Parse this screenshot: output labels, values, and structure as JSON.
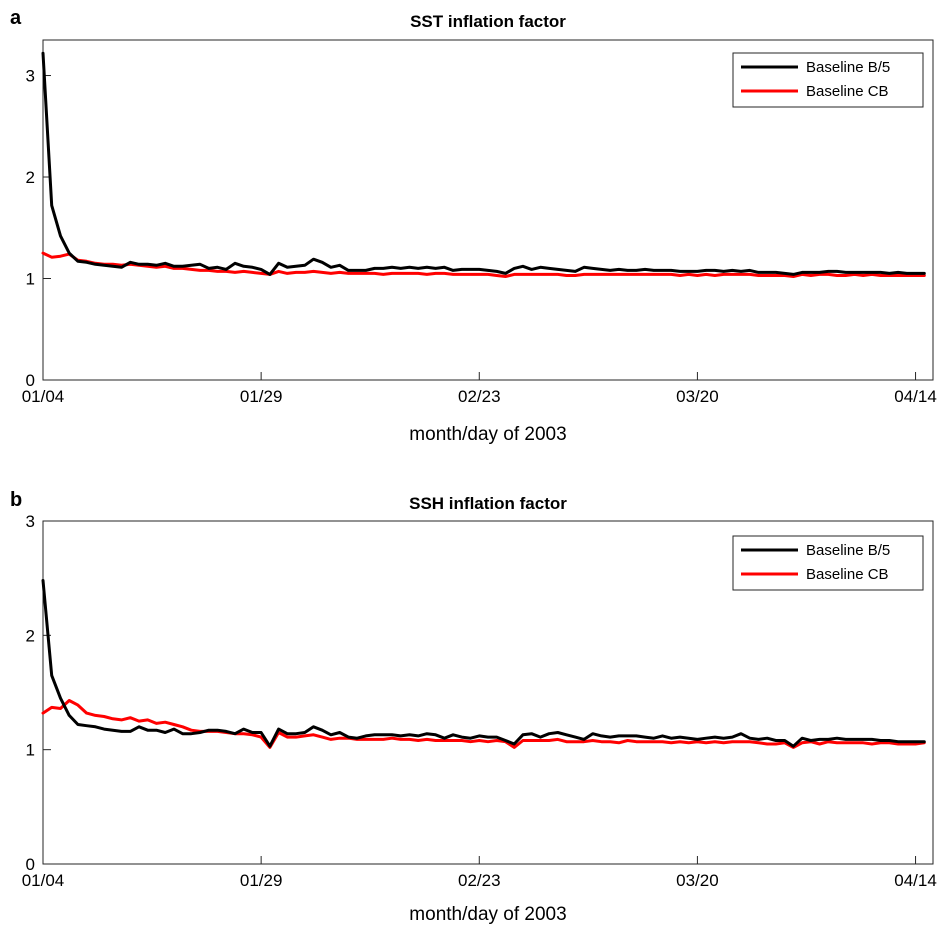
{
  "chart_data": [
    {
      "panel": "a",
      "type": "line",
      "title": "SST inflation factor",
      "xlabel": "month/day of 2003",
      "ylabel": "",
      "xlim": [
        0,
        102
      ],
      "ylim": [
        0,
        3.35
      ],
      "xticks": [
        {
          "x": 0,
          "label": "01/04"
        },
        {
          "x": 25,
          "label": "01/29"
        },
        {
          "x": 50,
          "label": "02/23"
        },
        {
          "x": 75,
          "label": "03/20"
        },
        {
          "x": 100,
          "label": "04/14"
        }
      ],
      "yticks": [
        0,
        1,
        2,
        3
      ],
      "legend_position": "top-right",
      "series": [
        {
          "name": "Baseline B/5",
          "color": "#000000",
          "values": [
            3.22,
            1.72,
            1.42,
            1.25,
            1.17,
            1.16,
            1.14,
            1.13,
            1.12,
            1.11,
            1.16,
            1.14,
            1.14,
            1.13,
            1.15,
            1.12,
            1.12,
            1.13,
            1.14,
            1.1,
            1.11,
            1.09,
            1.15,
            1.12,
            1.11,
            1.09,
            1.04,
            1.15,
            1.11,
            1.12,
            1.13,
            1.19,
            1.16,
            1.11,
            1.13,
            1.08,
            1.08,
            1.08,
            1.1,
            1.1,
            1.11,
            1.1,
            1.11,
            1.1,
            1.11,
            1.1,
            1.11,
            1.08,
            1.09,
            1.09,
            1.09,
            1.08,
            1.07,
            1.05,
            1.1,
            1.12,
            1.09,
            1.11,
            1.1,
            1.09,
            1.08,
            1.07,
            1.11,
            1.1,
            1.09,
            1.08,
            1.09,
            1.08,
            1.08,
            1.09,
            1.08,
            1.08,
            1.08,
            1.07,
            1.07,
            1.07,
            1.08,
            1.08,
            1.07,
            1.08,
            1.07,
            1.08,
            1.06,
            1.06,
            1.06,
            1.05,
            1.04,
            1.06,
            1.06,
            1.06,
            1.07,
            1.07,
            1.06,
            1.06,
            1.06,
            1.06,
            1.06,
            1.05,
            1.06,
            1.05,
            1.05,
            1.05
          ]
        },
        {
          "name": "Baseline CB",
          "color": "#ff0000",
          "values": [
            1.25,
            1.21,
            1.22,
            1.24,
            1.18,
            1.17,
            1.15,
            1.14,
            1.14,
            1.13,
            1.14,
            1.13,
            1.12,
            1.11,
            1.12,
            1.1,
            1.1,
            1.09,
            1.08,
            1.08,
            1.07,
            1.07,
            1.06,
            1.07,
            1.06,
            1.05,
            1.04,
            1.07,
            1.05,
            1.06,
            1.06,
            1.07,
            1.06,
            1.05,
            1.06,
            1.05,
            1.05,
            1.05,
            1.05,
            1.04,
            1.05,
            1.05,
            1.05,
            1.05,
            1.04,
            1.05,
            1.05,
            1.04,
            1.04,
            1.04,
            1.04,
            1.04,
            1.03,
            1.02,
            1.04,
            1.04,
            1.04,
            1.04,
            1.04,
            1.04,
            1.03,
            1.03,
            1.04,
            1.04,
            1.04,
            1.04,
            1.04,
            1.04,
            1.04,
            1.04,
            1.04,
            1.04,
            1.04,
            1.03,
            1.04,
            1.03,
            1.04,
            1.03,
            1.04,
            1.04,
            1.04,
            1.04,
            1.03,
            1.03,
            1.03,
            1.03,
            1.02,
            1.04,
            1.03,
            1.04,
            1.04,
            1.03,
            1.03,
            1.04,
            1.03,
            1.04,
            1.03,
            1.03,
            1.03,
            1.03,
            1.03,
            1.03
          ]
        }
      ]
    },
    {
      "panel": "b",
      "type": "line",
      "title": "SSH inflation factor",
      "xlabel": "month/day of 2003",
      "ylabel": "",
      "xlim": [
        0,
        102
      ],
      "ylim": [
        0,
        3
      ],
      "xticks": [
        {
          "x": 0,
          "label": "01/04"
        },
        {
          "x": 25,
          "label": "01/29"
        },
        {
          "x": 50,
          "label": "02/23"
        },
        {
          "x": 75,
          "label": "03/20"
        },
        {
          "x": 100,
          "label": "04/14"
        }
      ],
      "yticks": [
        0,
        1,
        2,
        3
      ],
      "legend_position": "top-right",
      "series": [
        {
          "name": "Baseline B/5",
          "color": "#000000",
          "values": [
            2.48,
            1.65,
            1.45,
            1.3,
            1.22,
            1.21,
            1.2,
            1.18,
            1.17,
            1.16,
            1.16,
            1.2,
            1.17,
            1.17,
            1.15,
            1.18,
            1.14,
            1.14,
            1.15,
            1.17,
            1.17,
            1.16,
            1.14,
            1.18,
            1.15,
            1.15,
            1.03,
            1.18,
            1.14,
            1.14,
            1.15,
            1.2,
            1.17,
            1.13,
            1.15,
            1.11,
            1.1,
            1.12,
            1.13,
            1.13,
            1.13,
            1.12,
            1.13,
            1.12,
            1.14,
            1.13,
            1.1,
            1.13,
            1.11,
            1.1,
            1.12,
            1.11,
            1.11,
            1.08,
            1.05,
            1.13,
            1.14,
            1.11,
            1.14,
            1.15,
            1.13,
            1.11,
            1.09,
            1.14,
            1.12,
            1.11,
            1.12,
            1.12,
            1.12,
            1.11,
            1.1,
            1.12,
            1.1,
            1.11,
            1.1,
            1.09,
            1.1,
            1.11,
            1.1,
            1.11,
            1.14,
            1.1,
            1.09,
            1.1,
            1.08,
            1.08,
            1.03,
            1.1,
            1.08,
            1.09,
            1.09,
            1.1,
            1.09,
            1.09,
            1.09,
            1.09,
            1.08,
            1.08,
            1.07,
            1.07,
            1.07,
            1.07
          ]
        },
        {
          "name": "Baseline CB",
          "color": "#ff0000",
          "values": [
            1.32,
            1.37,
            1.36,
            1.43,
            1.39,
            1.32,
            1.3,
            1.29,
            1.27,
            1.26,
            1.28,
            1.25,
            1.26,
            1.23,
            1.24,
            1.22,
            1.2,
            1.17,
            1.16,
            1.16,
            1.16,
            1.15,
            1.14,
            1.14,
            1.13,
            1.11,
            1.02,
            1.15,
            1.11,
            1.11,
            1.12,
            1.13,
            1.11,
            1.09,
            1.1,
            1.1,
            1.09,
            1.09,
            1.09,
            1.09,
            1.1,
            1.09,
            1.09,
            1.08,
            1.09,
            1.08,
            1.08,
            1.08,
            1.08,
            1.07,
            1.08,
            1.07,
            1.08,
            1.07,
            1.02,
            1.08,
            1.08,
            1.08,
            1.08,
            1.09,
            1.07,
            1.07,
            1.07,
            1.08,
            1.07,
            1.07,
            1.06,
            1.08,
            1.07,
            1.07,
            1.07,
            1.07,
            1.06,
            1.07,
            1.06,
            1.07,
            1.06,
            1.07,
            1.06,
            1.07,
            1.07,
            1.07,
            1.06,
            1.05,
            1.05,
            1.06,
            1.02,
            1.06,
            1.07,
            1.05,
            1.07,
            1.06,
            1.06,
            1.06,
            1.06,
            1.05,
            1.06,
            1.06,
            1.05,
            1.05,
            1.05,
            1.06
          ]
        }
      ]
    }
  ]
}
